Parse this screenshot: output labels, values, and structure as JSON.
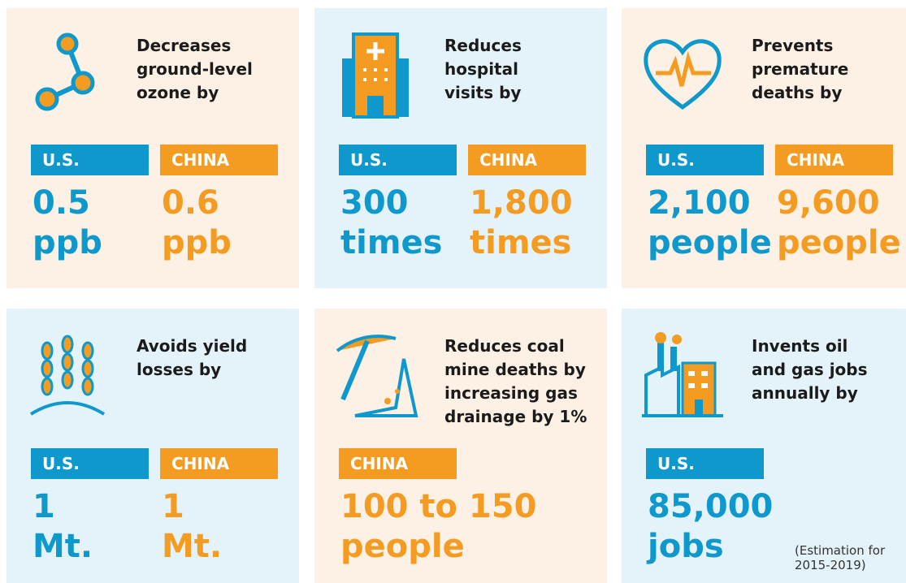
{
  "cards": [
    {
      "title": [
        "Decreases",
        "ground-level",
        "ozone by"
      ],
      "stats": [
        {
          "region": "U.S.",
          "color": "#0e98cc",
          "value": [
            "0.5",
            "ppb"
          ]
        },
        {
          "region": "CHINA",
          "color": "#f49b22",
          "value": [
            "0.6",
            "ppb"
          ]
        }
      ]
    },
    {
      "title": [
        "Reduces",
        "hospital",
        "visits by"
      ],
      "stats": [
        {
          "region": "U.S.",
          "color": "#0e98cc",
          "value": [
            "300",
            "times"
          ]
        },
        {
          "region": "CHINA",
          "color": "#f49b22",
          "value": [
            "1,800",
            "times"
          ]
        }
      ]
    },
    {
      "title": [
        "Prevents",
        "premature",
        "deaths by"
      ],
      "stats": [
        {
          "region": "U.S.",
          "color": "#0e98cc",
          "value": [
            "2,100",
            "people"
          ]
        },
        {
          "region": "CHINA",
          "color": "#f49b22",
          "value": [
            "9,600",
            "people"
          ]
        }
      ]
    },
    {
      "title": [
        "Avoids yield",
        "losses by"
      ],
      "stats": [
        {
          "region": "U.S.",
          "color": "#0e98cc",
          "value": [
            "1",
            "Mt."
          ]
        },
        {
          "region": "CHINA",
          "color": "#f49b22",
          "value": [
            "1",
            "Mt."
          ]
        }
      ]
    },
    {
      "title": [
        "Reduces coal",
        "mine deaths by",
        "increasing gas",
        "drainage by 1%"
      ],
      "stats": [
        {
          "region": "CHINA",
          "color": "#f49b22",
          "value": [
            "100 to 150",
            "people"
          ]
        }
      ]
    },
    {
      "title": [
        "Invents oil",
        "and gas jobs",
        "annually by"
      ],
      "stats": [
        {
          "region": "U.S.",
          "color": "#0e98cc",
          "value": [
            "85,000",
            "jobs"
          ]
        }
      ],
      "note": [
        "(Estimation for",
        "2015-2019)"
      ]
    }
  ]
}
